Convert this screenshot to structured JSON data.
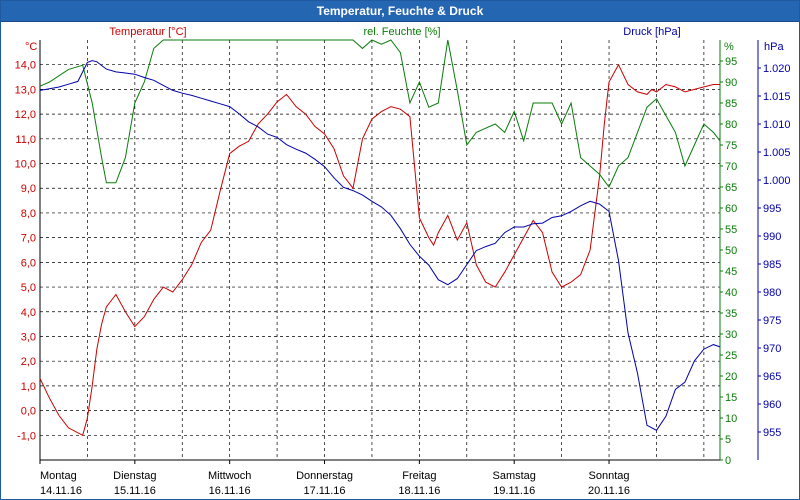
{
  "window": {
    "title": "Temperatur, Feuchte & Druck"
  },
  "colors": {
    "temperature": "#cc0000",
    "humidity": "#0a7d0a",
    "pressure": "#0000aa",
    "grid": "#000000",
    "titlebar": "#2566b3"
  },
  "chart_data": {
    "type": "line",
    "title": "Temperatur, Feuchte & Druck",
    "grid": true,
    "x_ticks": [
      {
        "day": "Montag",
        "date": "14.11.16"
      },
      {
        "day": "Dienstag",
        "date": "15.11.16"
      },
      {
        "day": "Mittwoch",
        "date": "16.11.16"
      },
      {
        "day": "Donnerstag",
        "date": "17.11.16"
      },
      {
        "day": "Freitag",
        "date": "18.11.16"
      },
      {
        "day": "Samstag",
        "date": "19.11.16"
      },
      {
        "day": "Sonntag",
        "date": "20.11.16"
      }
    ],
    "x_range_days": [
      0,
      7.17
    ],
    "axes": {
      "temperature": {
        "label": "Temperatur [°C]",
        "unit": "°C",
        "range": [
          -2.0,
          15.0
        ],
        "ticks": [
          "-1,0",
          "0,0",
          "1,0",
          "2,0",
          "3,0",
          "4,0",
          "5,0",
          "6,0",
          "7,0",
          "8,0",
          "9,0",
          "10,0",
          "11,0",
          "12,0",
          "13,0",
          "14,0"
        ]
      },
      "humidity": {
        "label": "rel. Feuchte [%]",
        "unit": "%",
        "range": [
          0,
          100
        ],
        "ticks": [
          "0",
          "5",
          "10",
          "15",
          "20",
          "25",
          "30",
          "35",
          "40",
          "45",
          "50",
          "55",
          "60",
          "65",
          "70",
          "75",
          "80",
          "85",
          "90",
          "95"
        ]
      },
      "pressure": {
        "label": "Druck [hPa]",
        "unit": "hPa",
        "range": [
          950.0,
          1025.0
        ],
        "ticks": [
          "955",
          "960",
          "965",
          "970",
          "975",
          "980",
          "985",
          "990",
          "995",
          "1.000",
          "1.005",
          "1.010",
          "1.015",
          "1.020"
        ]
      }
    },
    "series": [
      {
        "name": "Temperatur [°C]",
        "axis": "temperature",
        "x": [
          0.0,
          0.1,
          0.2,
          0.3,
          0.45,
          0.5,
          0.55,
          0.6,
          0.65,
          0.7,
          0.8,
          0.9,
          1.0,
          1.1,
          1.2,
          1.3,
          1.4,
          1.5,
          1.6,
          1.7,
          1.8,
          1.9,
          2.0,
          2.1,
          2.2,
          2.3,
          2.4,
          2.5,
          2.6,
          2.7,
          2.8,
          2.9,
          3.0,
          3.1,
          3.2,
          3.3,
          3.4,
          3.5,
          3.6,
          3.7,
          3.8,
          3.9,
          4.0,
          4.1,
          4.15,
          4.2,
          4.3,
          4.4,
          4.5,
          4.6,
          4.7,
          4.8,
          4.9,
          5.0,
          5.1,
          5.2,
          5.3,
          5.4,
          5.5,
          5.6,
          5.7,
          5.8,
          5.9,
          5.95,
          6.0,
          6.1,
          6.2,
          6.3,
          6.4,
          6.45,
          6.5,
          6.6,
          6.7,
          6.8,
          6.9,
          7.0,
          7.1,
          7.17
        ],
        "values": [
          1.3,
          0.5,
          -0.2,
          -0.7,
          -1.0,
          -0.3,
          1.0,
          2.5,
          3.5,
          4.2,
          4.7,
          4.0,
          3.4,
          3.8,
          4.5,
          5.0,
          4.8,
          5.3,
          5.9,
          6.8,
          7.3,
          8.9,
          10.4,
          10.7,
          10.9,
          11.6,
          12.0,
          12.5,
          12.8,
          12.3,
          12.0,
          11.5,
          11.2,
          10.6,
          9.5,
          9.0,
          11.0,
          11.8,
          12.1,
          12.3,
          12.2,
          11.9,
          7.8,
          7.0,
          6.7,
          7.2,
          7.9,
          6.9,
          7.6,
          5.9,
          5.2,
          5.0,
          5.6,
          6.3,
          7.0,
          7.7,
          7.2,
          5.6,
          5.0,
          5.2,
          5.5,
          6.5,
          9.5,
          11.6,
          13.3,
          14.0,
          13.2,
          12.9,
          12.8,
          13.0,
          12.9,
          13.2,
          13.1,
          12.9,
          13.0,
          13.1,
          13.2,
          13.2
        ]
      },
      {
        "name": "rel. Feuchte [%]",
        "axis": "humidity",
        "x": [
          0.0,
          0.1,
          0.3,
          0.45,
          0.55,
          0.65,
          0.7,
          0.8,
          0.9,
          1.0,
          1.1,
          1.2,
          1.3,
          1.4,
          1.5,
          1.6,
          1.7,
          1.8,
          1.9,
          2.0,
          2.1,
          2.2,
          2.3,
          2.4,
          2.5,
          2.6,
          2.7,
          2.8,
          2.9,
          3.0,
          3.1,
          3.2,
          3.3,
          3.4,
          3.5,
          3.6,
          3.7,
          3.8,
          3.9,
          4.0,
          4.1,
          4.2,
          4.3,
          4.4,
          4.5,
          4.6,
          4.7,
          4.8,
          4.9,
          5.0,
          5.1,
          5.2,
          5.3,
          5.4,
          5.5,
          5.6,
          5.7,
          5.8,
          5.9,
          6.0,
          6.1,
          6.2,
          6.3,
          6.4,
          6.5,
          6.6,
          6.7,
          6.8,
          6.9,
          7.0,
          7.1,
          7.17
        ],
        "values": [
          89,
          90,
          93,
          94,
          85,
          72,
          66,
          66,
          72,
          85,
          90,
          98,
          100,
          100,
          100,
          100,
          100,
          100,
          100,
          100,
          100,
          100,
          100,
          100,
          100,
          100,
          100,
          100,
          100,
          100,
          100,
          100,
          100,
          98,
          100,
          99,
          100,
          97,
          85,
          90,
          84,
          85,
          100,
          88,
          75,
          78,
          79,
          80,
          78,
          83,
          76,
          85,
          85,
          85,
          80,
          85,
          72,
          70,
          68,
          65,
          70,
          72,
          78,
          84,
          86,
          82,
          78,
          70,
          75,
          80,
          78,
          76
        ]
      },
      {
        "name": "Druck [hPa]",
        "axis": "pressure",
        "x": [
          0.0,
          0.1,
          0.2,
          0.3,
          0.4,
          0.5,
          0.55,
          0.6,
          0.7,
          0.8,
          0.9,
          1.0,
          1.1,
          1.2,
          1.3,
          1.4,
          1.5,
          1.6,
          1.7,
          1.8,
          1.9,
          2.0,
          2.1,
          2.2,
          2.3,
          2.4,
          2.5,
          2.6,
          2.7,
          2.8,
          2.9,
          3.0,
          3.1,
          3.2,
          3.3,
          3.4,
          3.5,
          3.6,
          3.7,
          3.8,
          3.9,
          4.0,
          4.1,
          4.2,
          4.3,
          4.4,
          4.5,
          4.6,
          4.7,
          4.8,
          4.9,
          5.0,
          5.1,
          5.2,
          5.3,
          5.4,
          5.5,
          5.6,
          5.7,
          5.8,
          5.9,
          6.0,
          6.1,
          6.2,
          6.3,
          6.4,
          6.5,
          6.6,
          6.7,
          6.8,
          6.9,
          7.0,
          7.1,
          7.17
        ],
        "values": [
          1016.0,
          1016.3,
          1016.6,
          1017.1,
          1017.6,
          1021.0,
          1021.3,
          1021.1,
          1019.8,
          1019.3,
          1019.1,
          1018.9,
          1018.3,
          1017.8,
          1016.9,
          1016.0,
          1015.5,
          1015.1,
          1014.6,
          1014.1,
          1013.6,
          1013.1,
          1011.8,
          1010.4,
          1009.5,
          1008.2,
          1007.6,
          1006.3,
          1005.5,
          1004.8,
          1003.7,
          1002.4,
          1000.4,
          998.7,
          998.1,
          997.3,
          996.2,
          995.2,
          993.7,
          991.3,
          988.5,
          986.4,
          984.8,
          982.2,
          981.3,
          982.4,
          984.9,
          987.4,
          988.1,
          988.7,
          990.6,
          991.6,
          991.6,
          992.2,
          992.3,
          993.3,
          993.6,
          994.4,
          995.4,
          996.2,
          995.7,
          994.4,
          985.6,
          972.7,
          965.5,
          956.2,
          955.3,
          957.8,
          962.6,
          963.9,
          967.7,
          969.8,
          970.6,
          970.2
        ]
      }
    ]
  }
}
